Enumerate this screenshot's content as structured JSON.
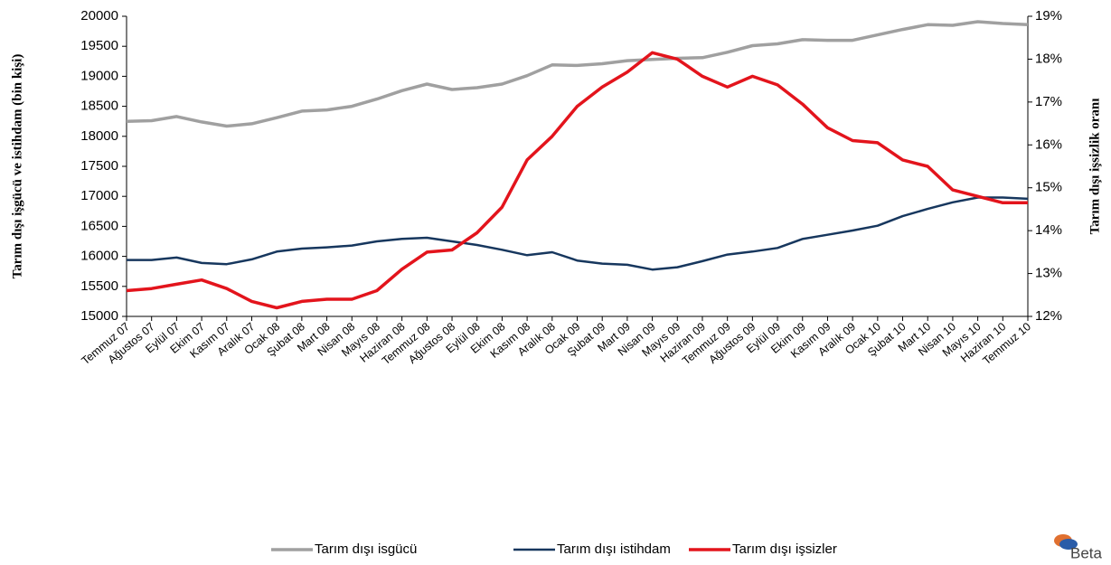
{
  "chart_data": {
    "type": "line",
    "y_label": "Tarım dışı işgücü ve istihdam (bin kişi)",
    "y2_label": "Tarım dışı işsizlik oranı",
    "logo": "Beta",
    "categories": [
      "Temmuz 07",
      "Ağustos 07",
      "Eylül 07",
      "Ekim 07",
      "Kasım 07",
      "Aralık 07",
      "Ocak 08",
      "Şubat 08",
      "Mart 08",
      "Nisan 08",
      "Mayıs 08",
      "Haziran 08",
      "Temmuz 08",
      "Ağustos 08",
      "Eylül 08",
      "Ekim 08",
      "Kasım 08",
      "Aralık 08",
      "Ocak 09",
      "Şubat 09",
      "Mart 09",
      "Nisan 09",
      "Mayıs 09",
      "Haziran 09",
      "Temmuz 09",
      "Ağustos 09",
      "Eylül 09",
      "Ekim 09",
      "Kasım 09",
      "Aralık 09",
      "Ocak 10",
      "Şubat 10",
      "Mart 10",
      "Nisan 10",
      "Mayıs 10",
      "Haziran 10",
      "Temmuz 10"
    ],
    "series": [
      {
        "name": "Tarım dışı isgücü",
        "color": "#a0a0a0",
        "values": [
          18250,
          18260,
          18330,
          18240,
          18170,
          18210,
          18310,
          18420,
          18440,
          18500,
          18620,
          18760,
          18870,
          18780,
          18810,
          18870,
          19010,
          19190,
          19180,
          19210,
          19260,
          19280,
          19300,
          19310,
          19400,
          19510,
          19540,
          19610,
          19600,
          19600,
          19690,
          19780,
          19860,
          19850,
          19910,
          19880,
          19860
        ]
      },
      {
        "name": "Tarım dışı istihdam",
        "color": "#17375e",
        "values": [
          15940,
          15940,
          15980,
          15890,
          15870,
          15950,
          16080,
          16130,
          16150,
          16180,
          16250,
          16290,
          16310,
          16250,
          16190,
          16110,
          16020,
          16070,
          15930,
          15880,
          15860,
          15780,
          15820,
          15920,
          16030,
          16080,
          16140,
          16290,
          16360,
          16430,
          16510,
          16670,
          16790,
          16900,
          16980,
          16980,
          16960
        ]
      },
      {
        "name": "Tarım dışı işsizler",
        "color": "#e3141c",
        "axis": "y2",
        "values": [
          12.6,
          12.65,
          12.75,
          12.85,
          12.65,
          12.35,
          12.2,
          12.35,
          12.4,
          12.4,
          12.6,
          13.1,
          13.5,
          13.55,
          13.95,
          14.55,
          15.65,
          16.2,
          16.9,
          17.35,
          17.7,
          18.15,
          18.0,
          17.6,
          17.35,
          17.6,
          17.4,
          16.95,
          16.4,
          16.1,
          16.05,
          15.65,
          15.5,
          14.95,
          14.8,
          14.65,
          14.65
        ]
      }
    ],
    "ylim": [
      15000,
      20000
    ],
    "yticks": [
      15000,
      15500,
      16000,
      16500,
      17000,
      17500,
      18000,
      18500,
      19000,
      19500,
      20000
    ],
    "y2lim": [
      12,
      19
    ],
    "y2ticks": [
      {
        "value": 12,
        "label": "12%"
      },
      {
        "value": 13,
        "label": "13%"
      },
      {
        "value": 14,
        "label": "14%"
      },
      {
        "value": 15,
        "label": "15%"
      },
      {
        "value": 16,
        "label": "16%"
      },
      {
        "value": 17,
        "label": "17%"
      },
      {
        "value": 18,
        "label": "18%"
      },
      {
        "value": 19,
        "label": "19%"
      }
    ],
    "grid": false,
    "legend": "bottom"
  }
}
